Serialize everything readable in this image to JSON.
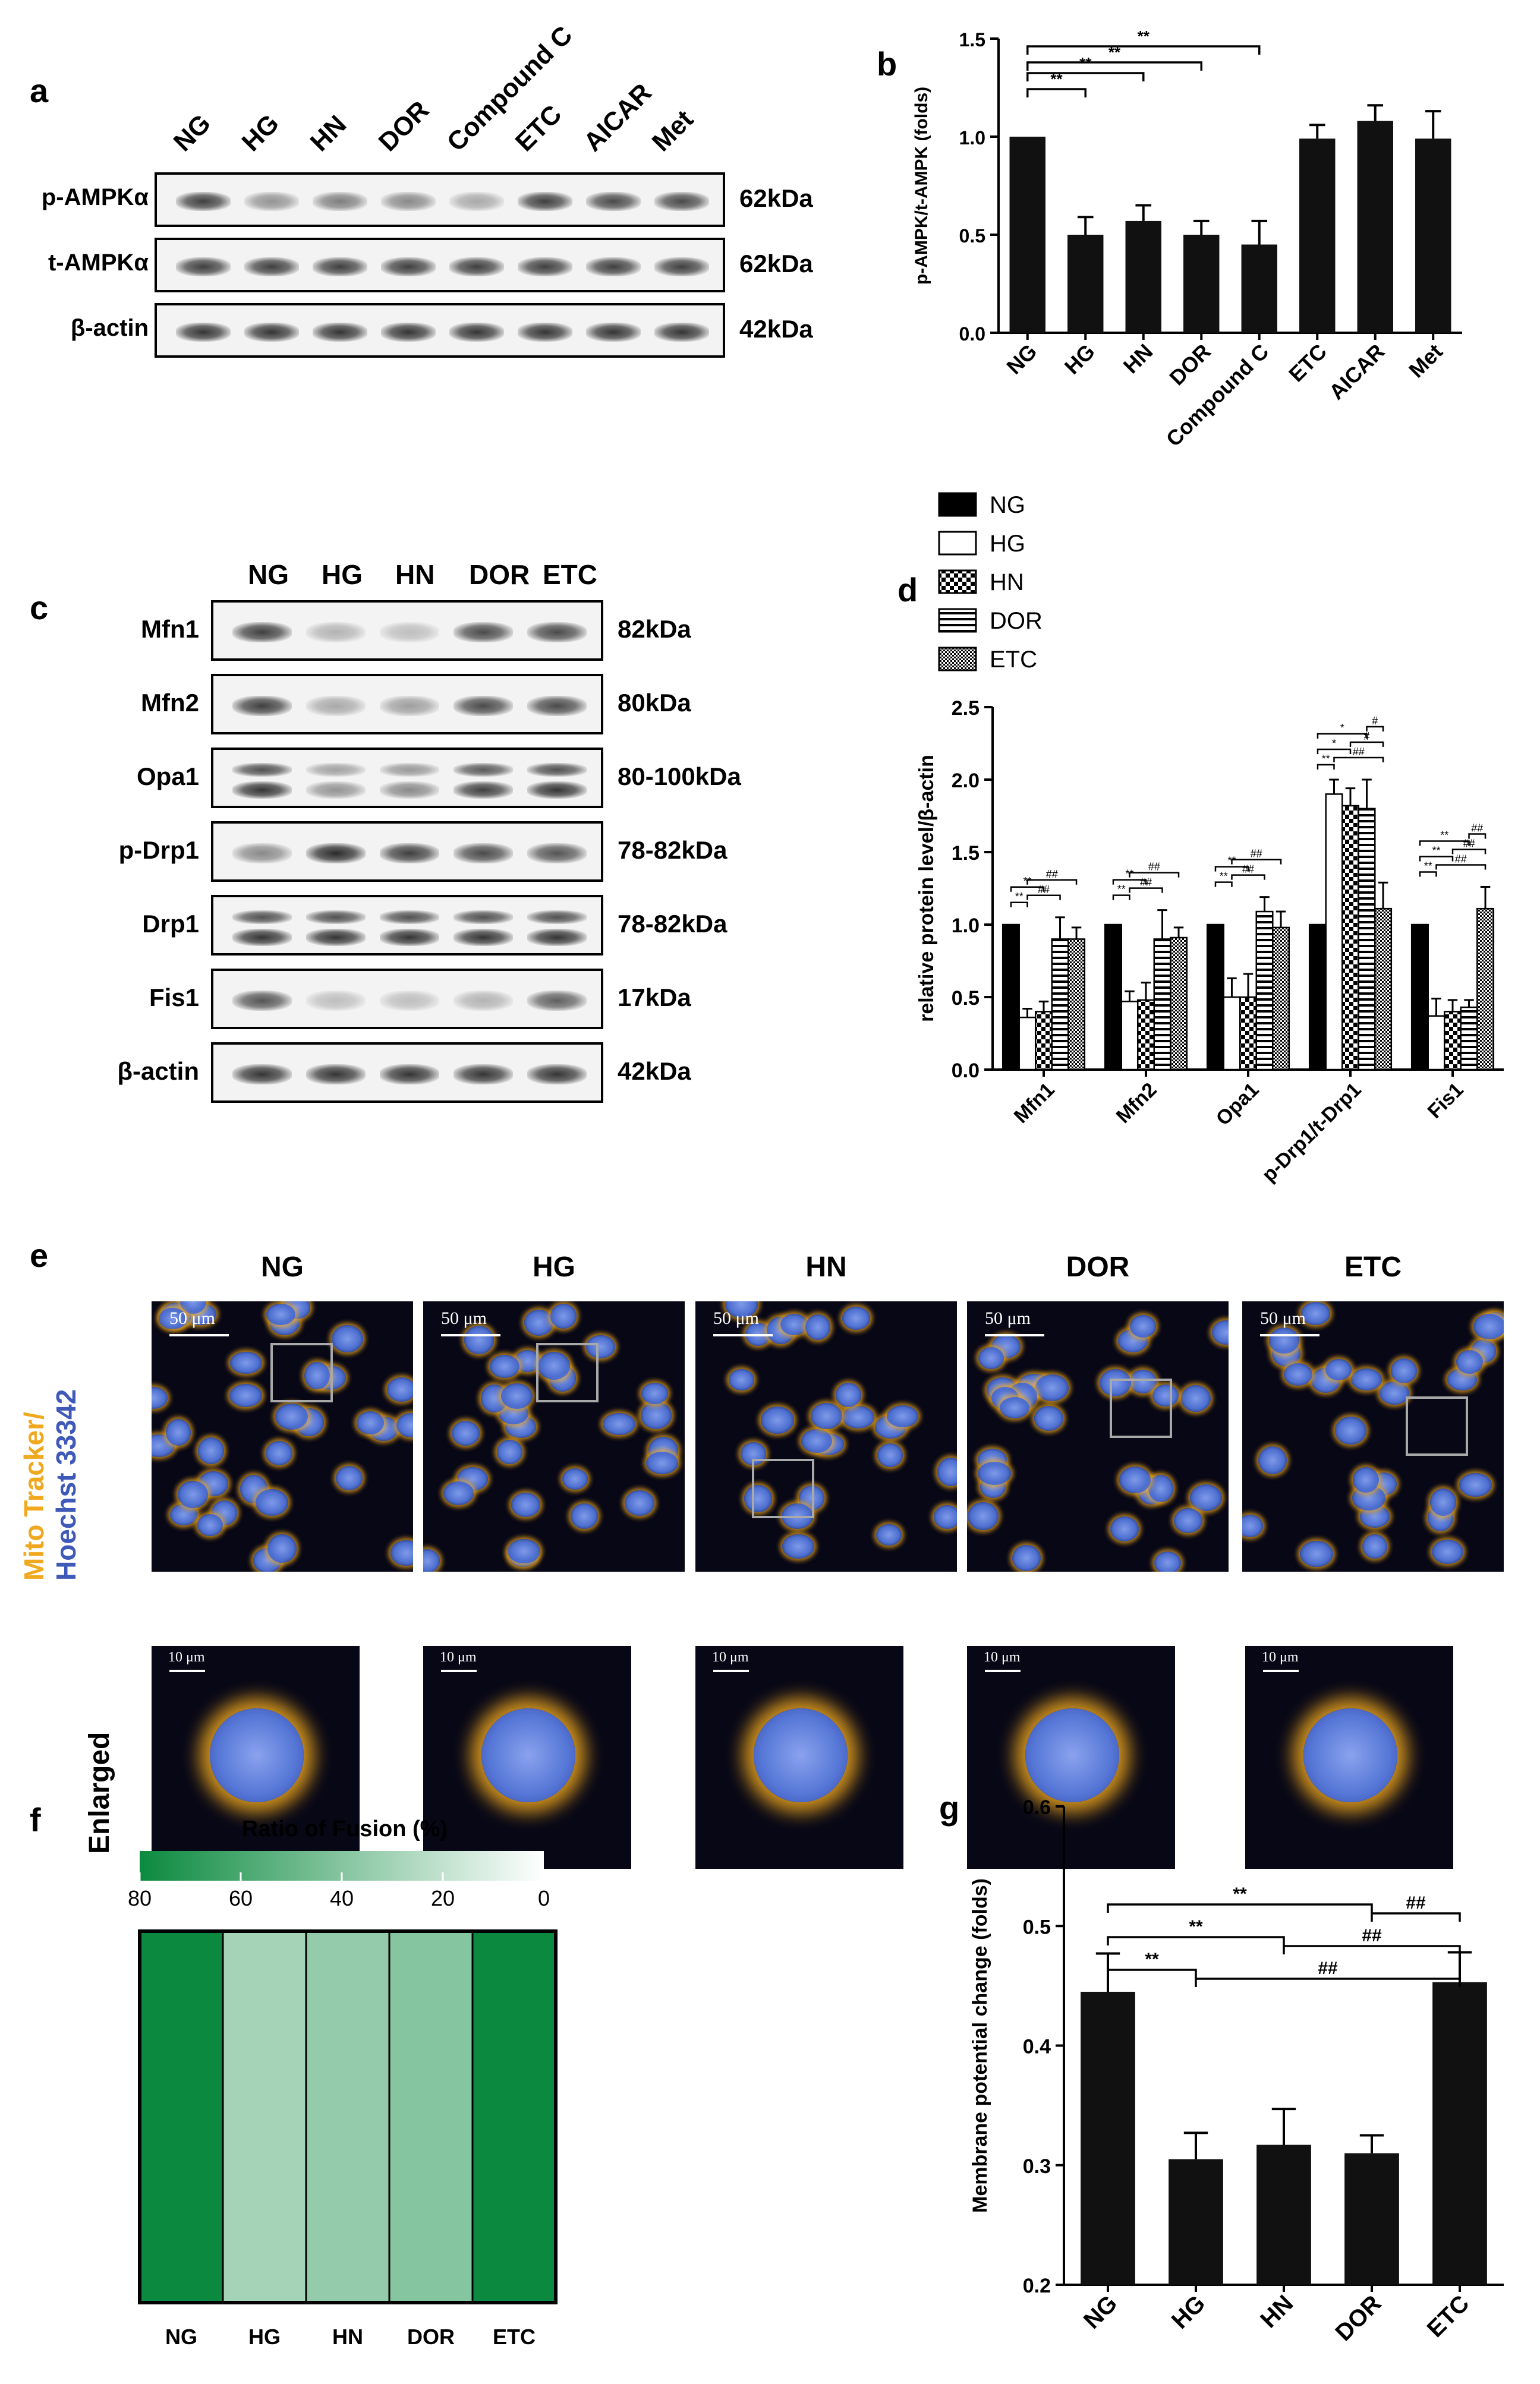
{
  "panels": {
    "a": "a",
    "b": "b",
    "c": "c",
    "d": "d",
    "e": "e",
    "f": "f",
    "g": "g"
  },
  "panel_a": {
    "lanes": [
      "NG",
      "HG",
      "HN",
      "DOR",
      "Compound C",
      "ETC",
      "AICAR",
      "Met"
    ],
    "rows": [
      {
        "label": "p-AMPKα",
        "kda": "62kDa",
        "intensity": [
          0.85,
          0.45,
          0.55,
          0.5,
          0.35,
          0.85,
          0.8,
          0.8
        ]
      },
      {
        "label": "t-AMPKα",
        "kda": "62kDa",
        "intensity": [
          0.85,
          0.85,
          0.85,
          0.85,
          0.85,
          0.85,
          0.85,
          0.85
        ]
      },
      {
        "label": "β-actin",
        "kda": "42kDa",
        "intensity": [
          0.9,
          0.9,
          0.9,
          0.9,
          0.9,
          0.9,
          0.9,
          0.9
        ]
      }
    ]
  },
  "panel_c": {
    "lanes": [
      "NG",
      "HG",
      "HN",
      "DOR",
      "ETC"
    ],
    "rows": [
      {
        "label": "Mfn1",
        "kda": "82kDa",
        "intensity": [
          0.85,
          0.3,
          0.25,
          0.8,
          0.8
        ]
      },
      {
        "label": "Mfn2",
        "kda": "80kDa",
        "intensity": [
          0.85,
          0.35,
          0.4,
          0.8,
          0.8
        ]
      },
      {
        "label": "Opa1",
        "kda": "80-100kDa",
        "intensity": [
          0.9,
          0.45,
          0.5,
          0.85,
          0.9
        ]
      },
      {
        "label": "p-Drp1",
        "kda": "78-82kDa",
        "intensity": [
          0.5,
          0.95,
          0.85,
          0.8,
          0.75
        ]
      },
      {
        "label": "Drp1",
        "kda": "78-82kDa",
        "intensity": [
          0.9,
          0.9,
          0.9,
          0.9,
          0.9
        ]
      },
      {
        "label": "Fis1",
        "kda": "17kDa",
        "intensity": [
          0.75,
          0.25,
          0.25,
          0.3,
          0.7
        ]
      },
      {
        "label": "β-actin",
        "kda": "42kDa",
        "intensity": [
          0.9,
          0.9,
          0.9,
          0.9,
          0.9
        ]
      }
    ]
  },
  "chart_data": [
    {
      "id": "b",
      "type": "bar",
      "categories": [
        "NG",
        "HG",
        "HN",
        "DOR",
        "Compound C",
        "ETC",
        "AICAR",
        "Met"
      ],
      "values": [
        1.0,
        0.5,
        0.57,
        0.5,
        0.45,
        0.99,
        1.08,
        0.99
      ],
      "errors": [
        0.0,
        0.09,
        0.08,
        0.07,
        0.12,
        0.07,
        0.08,
        0.14
      ],
      "ylabel": "p-AMPK/t-AMPK (folds)",
      "ylim": [
        0.0,
        1.5
      ],
      "yticks": [
        "0.0",
        "0.5",
        "1.0",
        "1.5"
      ],
      "significance": [
        {
          "from": 0,
          "to": 1,
          "label": "**"
        },
        {
          "from": 0,
          "to": 2,
          "label": "**"
        },
        {
          "from": 0,
          "to": 3,
          "label": "**"
        },
        {
          "from": 0,
          "to": 4,
          "label": "**"
        }
      ],
      "color": "#111111"
    },
    {
      "id": "d",
      "type": "bar",
      "categories": [
        "Mfn1",
        "Mfn2",
        "Opa1",
        "p-Drp1/t-Drp1",
        "Fis1"
      ],
      "series": [
        {
          "name": "NG",
          "values": [
            1.0,
            1.0,
            1.0,
            1.0,
            1.0
          ],
          "errors": [
            0,
            0,
            0,
            0,
            0
          ]
        },
        {
          "name": "HG",
          "values": [
            0.36,
            0.47,
            0.5,
            1.9,
            0.37
          ],
          "errors": [
            0.06,
            0.07,
            0.13,
            0.1,
            0.12
          ]
        },
        {
          "name": "HN",
          "values": [
            0.4,
            0.48,
            0.5,
            1.82,
            0.4
          ],
          "errors": [
            0.07,
            0.12,
            0.16,
            0.12,
            0.08
          ]
        },
        {
          "name": "DOR",
          "values": [
            0.9,
            0.9,
            1.09,
            1.8,
            0.43
          ],
          "errors": [
            0.15,
            0.2,
            0.1,
            0.2,
            0.05
          ]
        },
        {
          "name": "ETC",
          "values": [
            0.9,
            0.91,
            0.98,
            1.11,
            1.11
          ],
          "errors": [
            0.08,
            0.07,
            0.11,
            0.18,
            0.15
          ]
        }
      ],
      "ylabel": "relative protein level/β-actin",
      "ylim": [
        0.0,
        2.5
      ],
      "yticks": [
        "0.0",
        "0.5",
        "1.0",
        "1.5",
        "2.0",
        "2.5"
      ],
      "legend": "top-left",
      "sig_labels": {
        "Mfn1": [
          "**",
          "**",
          "##",
          "##"
        ],
        "Mfn2": [
          "**",
          "**",
          "##",
          "##"
        ],
        "Opa1": [
          "**",
          "**",
          "##",
          "##"
        ],
        "p-Drp1/t-Drp1": [
          "**",
          "*",
          "*",
          "##",
          "#",
          "#"
        ],
        "Fis1": [
          "**",
          "**",
          "**",
          "##",
          "##",
          "##"
        ]
      }
    },
    {
      "id": "f",
      "type": "heatmap",
      "categories": [
        "NG",
        "HG",
        "HN",
        "DOR",
        "ETC"
      ],
      "values": [
        80,
        30,
        35,
        40,
        80
      ],
      "colorbar_title": "Ratio of Fusion (%)",
      "colorbar_ticks": [
        "80",
        "60",
        "40",
        "20",
        "0"
      ],
      "colorbar_range": [
        80,
        0
      ]
    },
    {
      "id": "g",
      "type": "bar",
      "categories": [
        "NG",
        "HG",
        "HN",
        "DOR",
        "ETC"
      ],
      "values": [
        0.445,
        0.305,
        0.317,
        0.31,
        0.453
      ],
      "errors": [
        0.032,
        0.022,
        0.03,
        0.015,
        0.025
      ],
      "ylabel": "Membrane potential change (folds)",
      "ylim": [
        0.2,
        0.6
      ],
      "yticks": [
        "0.2",
        "0.3",
        "0.4",
        "0.5",
        "0.6"
      ],
      "significance": [
        {
          "from": 0,
          "to": 1,
          "label": "**"
        },
        {
          "from": 0,
          "to": 2,
          "label": "**"
        },
        {
          "from": 0,
          "to": 3,
          "label": "**"
        },
        {
          "from": 1,
          "to": 4,
          "label": "##"
        },
        {
          "from": 2,
          "to": 4,
          "label": "##"
        },
        {
          "from": 3,
          "to": 4,
          "label": "##"
        }
      ],
      "color": "#111111"
    }
  ],
  "panel_e": {
    "groups": [
      "NG",
      "HG",
      "HN",
      "DOR",
      "ETC"
    ],
    "side_label_1": "Mito Tracker/",
    "side_label_2": "Hoechst 33342",
    "enlarged_label": "Enlarged",
    "scale_top": "50 μm",
    "scale_bottom": "10 μm",
    "colors": {
      "mito": "#f0a81e",
      "nucleus": "#4d6fd0",
      "background": "#070716"
    }
  }
}
